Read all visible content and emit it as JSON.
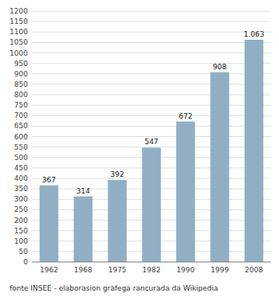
{
  "chart_data": {
    "type": "bar",
    "categories": [
      "1962",
      "1968",
      "1975",
      "1982",
      "1990",
      "1999",
      "2008"
    ],
    "values": [
      367,
      314,
      392,
      547,
      672,
      908,
      1063
    ],
    "value_labels": [
      "367",
      "314",
      "392",
      "547",
      "672",
      "908",
      "1.063"
    ],
    "data_labels": true,
    "color": "#90AFC5",
    "ylim": [
      0,
      1200
    ],
    "yticks": [
      0,
      50,
      100,
      150,
      200,
      250,
      300,
      350,
      400,
      450,
      500,
      550,
      600,
      650,
      700,
      750,
      800,
      850,
      900,
      950,
      1000,
      1050,
      1100,
      1150,
      1200
    ],
    "grid": true,
    "caption": "fonte INSEE - elaborasion gràfega rancurada da Wikipedia"
  }
}
